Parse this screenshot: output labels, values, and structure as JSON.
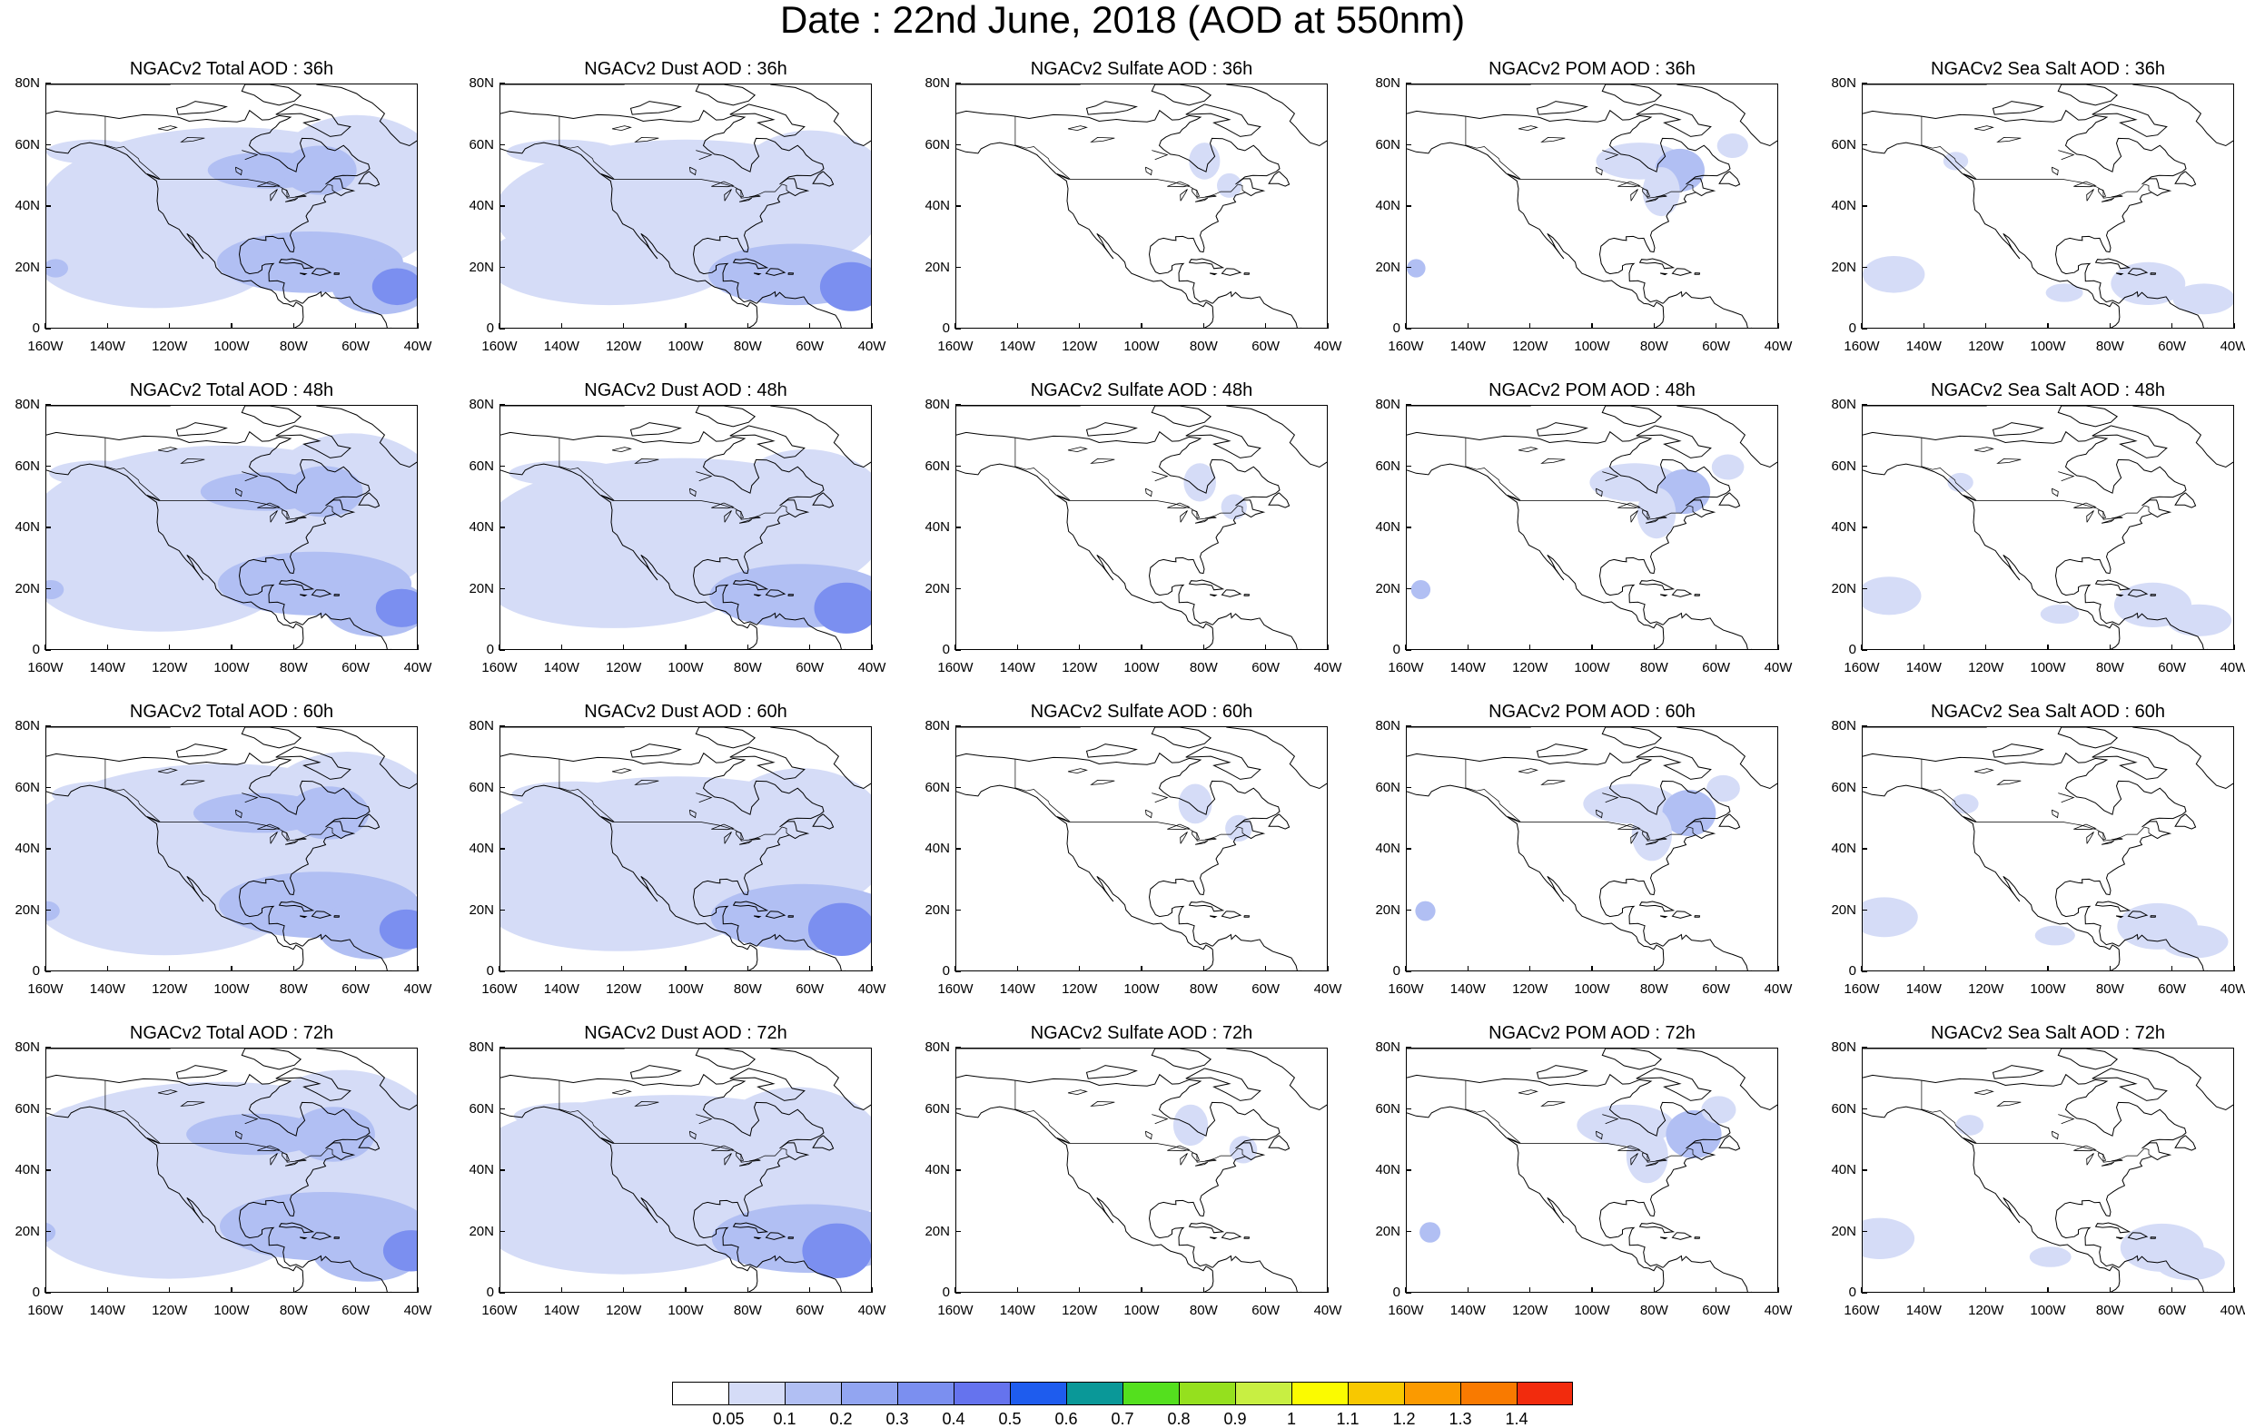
{
  "title": "Date : 22nd June, 2018 (AOD at 550nm)",
  "row_labels": [
    "36h",
    "48h",
    "60h",
    "72h"
  ],
  "column_titles": [
    [
      "NGACv2 Total AOD : 36h",
      "NGACv2 Dust AOD : 36h",
      "NGACv2 Sulfate AOD : 36h",
      "NGACv2 POM AOD : 36h",
      "NGACv2 Sea Salt AOD : 36h"
    ],
    [
      "NGACv2 Total AOD : 48h",
      "NGACv2 Dust AOD : 48h",
      "NGACv2 Sulfate AOD : 48h",
      "NGACv2 POM AOD : 48h",
      "NGACv2 Sea Salt AOD : 48h"
    ],
    [
      "NGACv2 Total AOD : 60h",
      "NGACv2 Dust AOD : 60h",
      "NGACv2 Sulfate AOD : 60h",
      "NGACv2 POM AOD : 60h",
      "NGACv2 Sea Salt AOD : 60h"
    ],
    [
      "NGACv2 Total AOD : 72h",
      "NGACv2 Dust AOD : 72h",
      "NGACv2 Sulfate AOD : 72h",
      "NGACv2 POM AOD : 72h",
      "NGACv2 Sea Salt  AOD : 72h"
    ]
  ],
  "y_ticks": [
    "80N",
    "60N",
    "40N",
    "20N",
    "0"
  ],
  "x_ticks": [
    "160W",
    "140W",
    "120W",
    "100W",
    "80W",
    "60W",
    "40W"
  ],
  "lon_range": [
    -160,
    -40
  ],
  "lat_range": [
    0,
    80
  ],
  "colorbar": {
    "colors": [
      "#ffffff",
      "#d5dcf7",
      "#b1bff3",
      "#92a5f1",
      "#7b8ff0",
      "#6573ee",
      "#1e5cee",
      "#0a9898",
      "#54e01e",
      "#95e01e",
      "#c8ef42",
      "#fbfb00",
      "#f8c800",
      "#fb9a00",
      "#f97a00",
      "#f22b0d"
    ],
    "labels": [
      "0.05",
      "0.1",
      "0.2",
      "0.3",
      "0.4",
      "0.5",
      "0.6",
      "0.7",
      "0.8",
      "0.9",
      "1",
      "1.1",
      "1.2",
      "1.3",
      "1.4"
    ]
  },
  "field_colors": {
    "light": "#d5dcf7",
    "medium": "#b1bff3",
    "strong": "#7b8ff0",
    "coast": "#000000"
  }
}
